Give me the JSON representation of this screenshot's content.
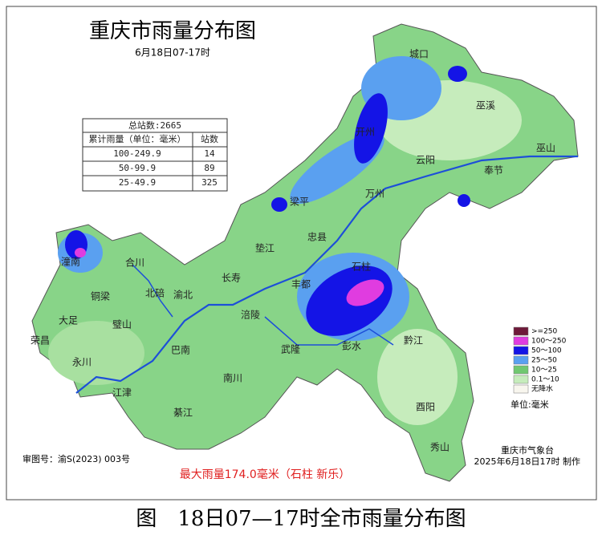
{
  "title": "重庆市雨量分布图",
  "subtitle": "6月18日07-17时",
  "table": {
    "header": "总站数:2665",
    "columns": [
      "累计雨量（单位：毫米）",
      "站数"
    ],
    "rows": [
      [
        "100-249.9",
        14
      ],
      [
        "50-99.9",
        89
      ],
      [
        "25-49.9",
        325
      ]
    ]
  },
  "legend": {
    "items": [
      {
        "label": ">=250",
        "color": "#6e1a3a"
      },
      {
        "label": "100～250",
        "color": "#e03ce0"
      },
      {
        "label": "50～100",
        "color": "#1414e6"
      },
      {
        "label": "25～50",
        "color": "#5aa0f0"
      },
      {
        "label": "10～25",
        "color": "#70c870"
      },
      {
        "label": "0.1～10",
        "color": "#c6ecbc"
      },
      {
        "label": "无降水",
        "color": "#f8f6ee"
      }
    ],
    "unit": "单位:毫米"
  },
  "places": [
    {
      "label": "城口"
    },
    {
      "label": "巫溪"
    },
    {
      "label": "巫山"
    },
    {
      "label": "开州"
    },
    {
      "label": "云阳"
    },
    {
      "label": "奉节"
    },
    {
      "label": "梁平"
    },
    {
      "label": "万州"
    },
    {
      "label": "忠县"
    },
    {
      "label": "垫江"
    },
    {
      "label": "潼南"
    },
    {
      "label": "合川"
    },
    {
      "label": "长寿"
    },
    {
      "label": "石柱"
    },
    {
      "label": "丰都"
    },
    {
      "label": "铜梁"
    },
    {
      "label": "北碚"
    },
    {
      "label": "渝北"
    },
    {
      "label": "大足"
    },
    {
      "label": "璧山"
    },
    {
      "label": "涪陵"
    },
    {
      "label": "荣昌"
    },
    {
      "label": "武隆"
    },
    {
      "label": "彭水"
    },
    {
      "label": "黔江"
    },
    {
      "label": "巴南"
    },
    {
      "label": "永川"
    },
    {
      "label": "南川"
    },
    {
      "label": "江津"
    },
    {
      "label": "綦江"
    },
    {
      "label": "酉阳"
    },
    {
      "label": "秀山"
    }
  ],
  "approval": "审图号：渝S(2023) 003号",
  "max_rain": "最大雨量174.0毫米（石柱 新乐）",
  "credit": [
    "重庆市气象台",
    "2025年6月18日17时 制作"
  ],
  "caption": "图　18日07—17时全市雨量分布图"
}
